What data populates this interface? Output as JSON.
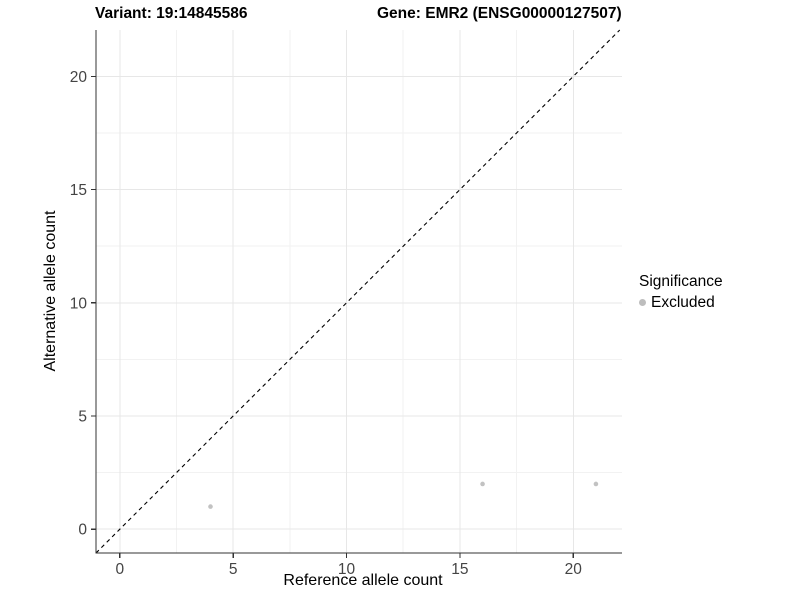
{
  "colors": {
    "background": "#ffffff",
    "point": "#c2c2c2",
    "grid_major": "#e7e7e7",
    "grid_minor": "#f2f2f2",
    "axis": "#333333",
    "tick_label": "#444444",
    "identity_line": "#000000",
    "legend_key": "#bdbdbd"
  },
  "chart_data": {
    "type": "scatter",
    "titles": {
      "left": "Variant: 19:14845586",
      "right": "Gene: EMR2 (ENSG00000127507)"
    },
    "xlabel": "Reference allele count",
    "ylabel": "Alternative allele count",
    "xlim": [
      -1.05,
      22.15
    ],
    "ylim": [
      -1.05,
      22.05
    ],
    "x_major_ticks": [
      0,
      5,
      10,
      15,
      20
    ],
    "y_major_ticks": [
      0,
      5,
      10,
      15,
      20
    ],
    "x_minor_ticks": [
      2.5,
      7.5,
      12.5,
      17.5
    ],
    "y_minor_ticks": [
      2.5,
      7.5,
      12.5,
      17.5
    ],
    "grid": true,
    "series": [
      {
        "name": "Excluded",
        "color": "#c2c2c2",
        "points": [
          [
            4,
            1
          ],
          [
            16,
            2
          ],
          [
            21,
            2
          ]
        ]
      }
    ],
    "reference_line": {
      "type": "identity",
      "style": "dashed",
      "color": "#000000"
    },
    "legend": {
      "title": "Significance",
      "position": "right",
      "items": [
        {
          "label": "Excluded",
          "color": "#bdbdbd"
        }
      ]
    }
  }
}
